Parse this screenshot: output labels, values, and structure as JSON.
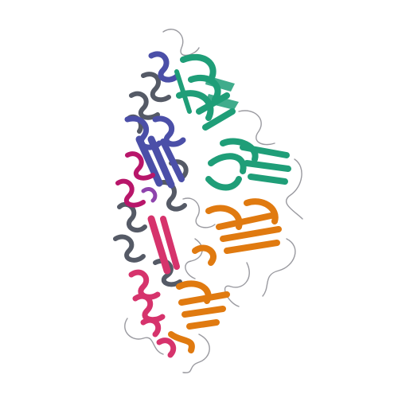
{
  "image": {
    "background": "#ffffff",
    "subject": "protein-ribbon-structure"
  },
  "chains": [
    {
      "id": "chain-a",
      "color": "#1f9e78"
    },
    {
      "id": "chain-b",
      "color": "#e07a10"
    },
    {
      "id": "chain-c",
      "color": "#555a66"
    },
    {
      "id": "chain-d",
      "color": "#4b4fa8"
    },
    {
      "id": "chain-e",
      "color": "#d6336c"
    },
    {
      "id": "chain-f",
      "color": "#b8166a"
    },
    {
      "id": "chain-g",
      "color": "#8e44ad"
    }
  ],
  "accent_colors": {
    "coil": "#9a9aa0"
  }
}
